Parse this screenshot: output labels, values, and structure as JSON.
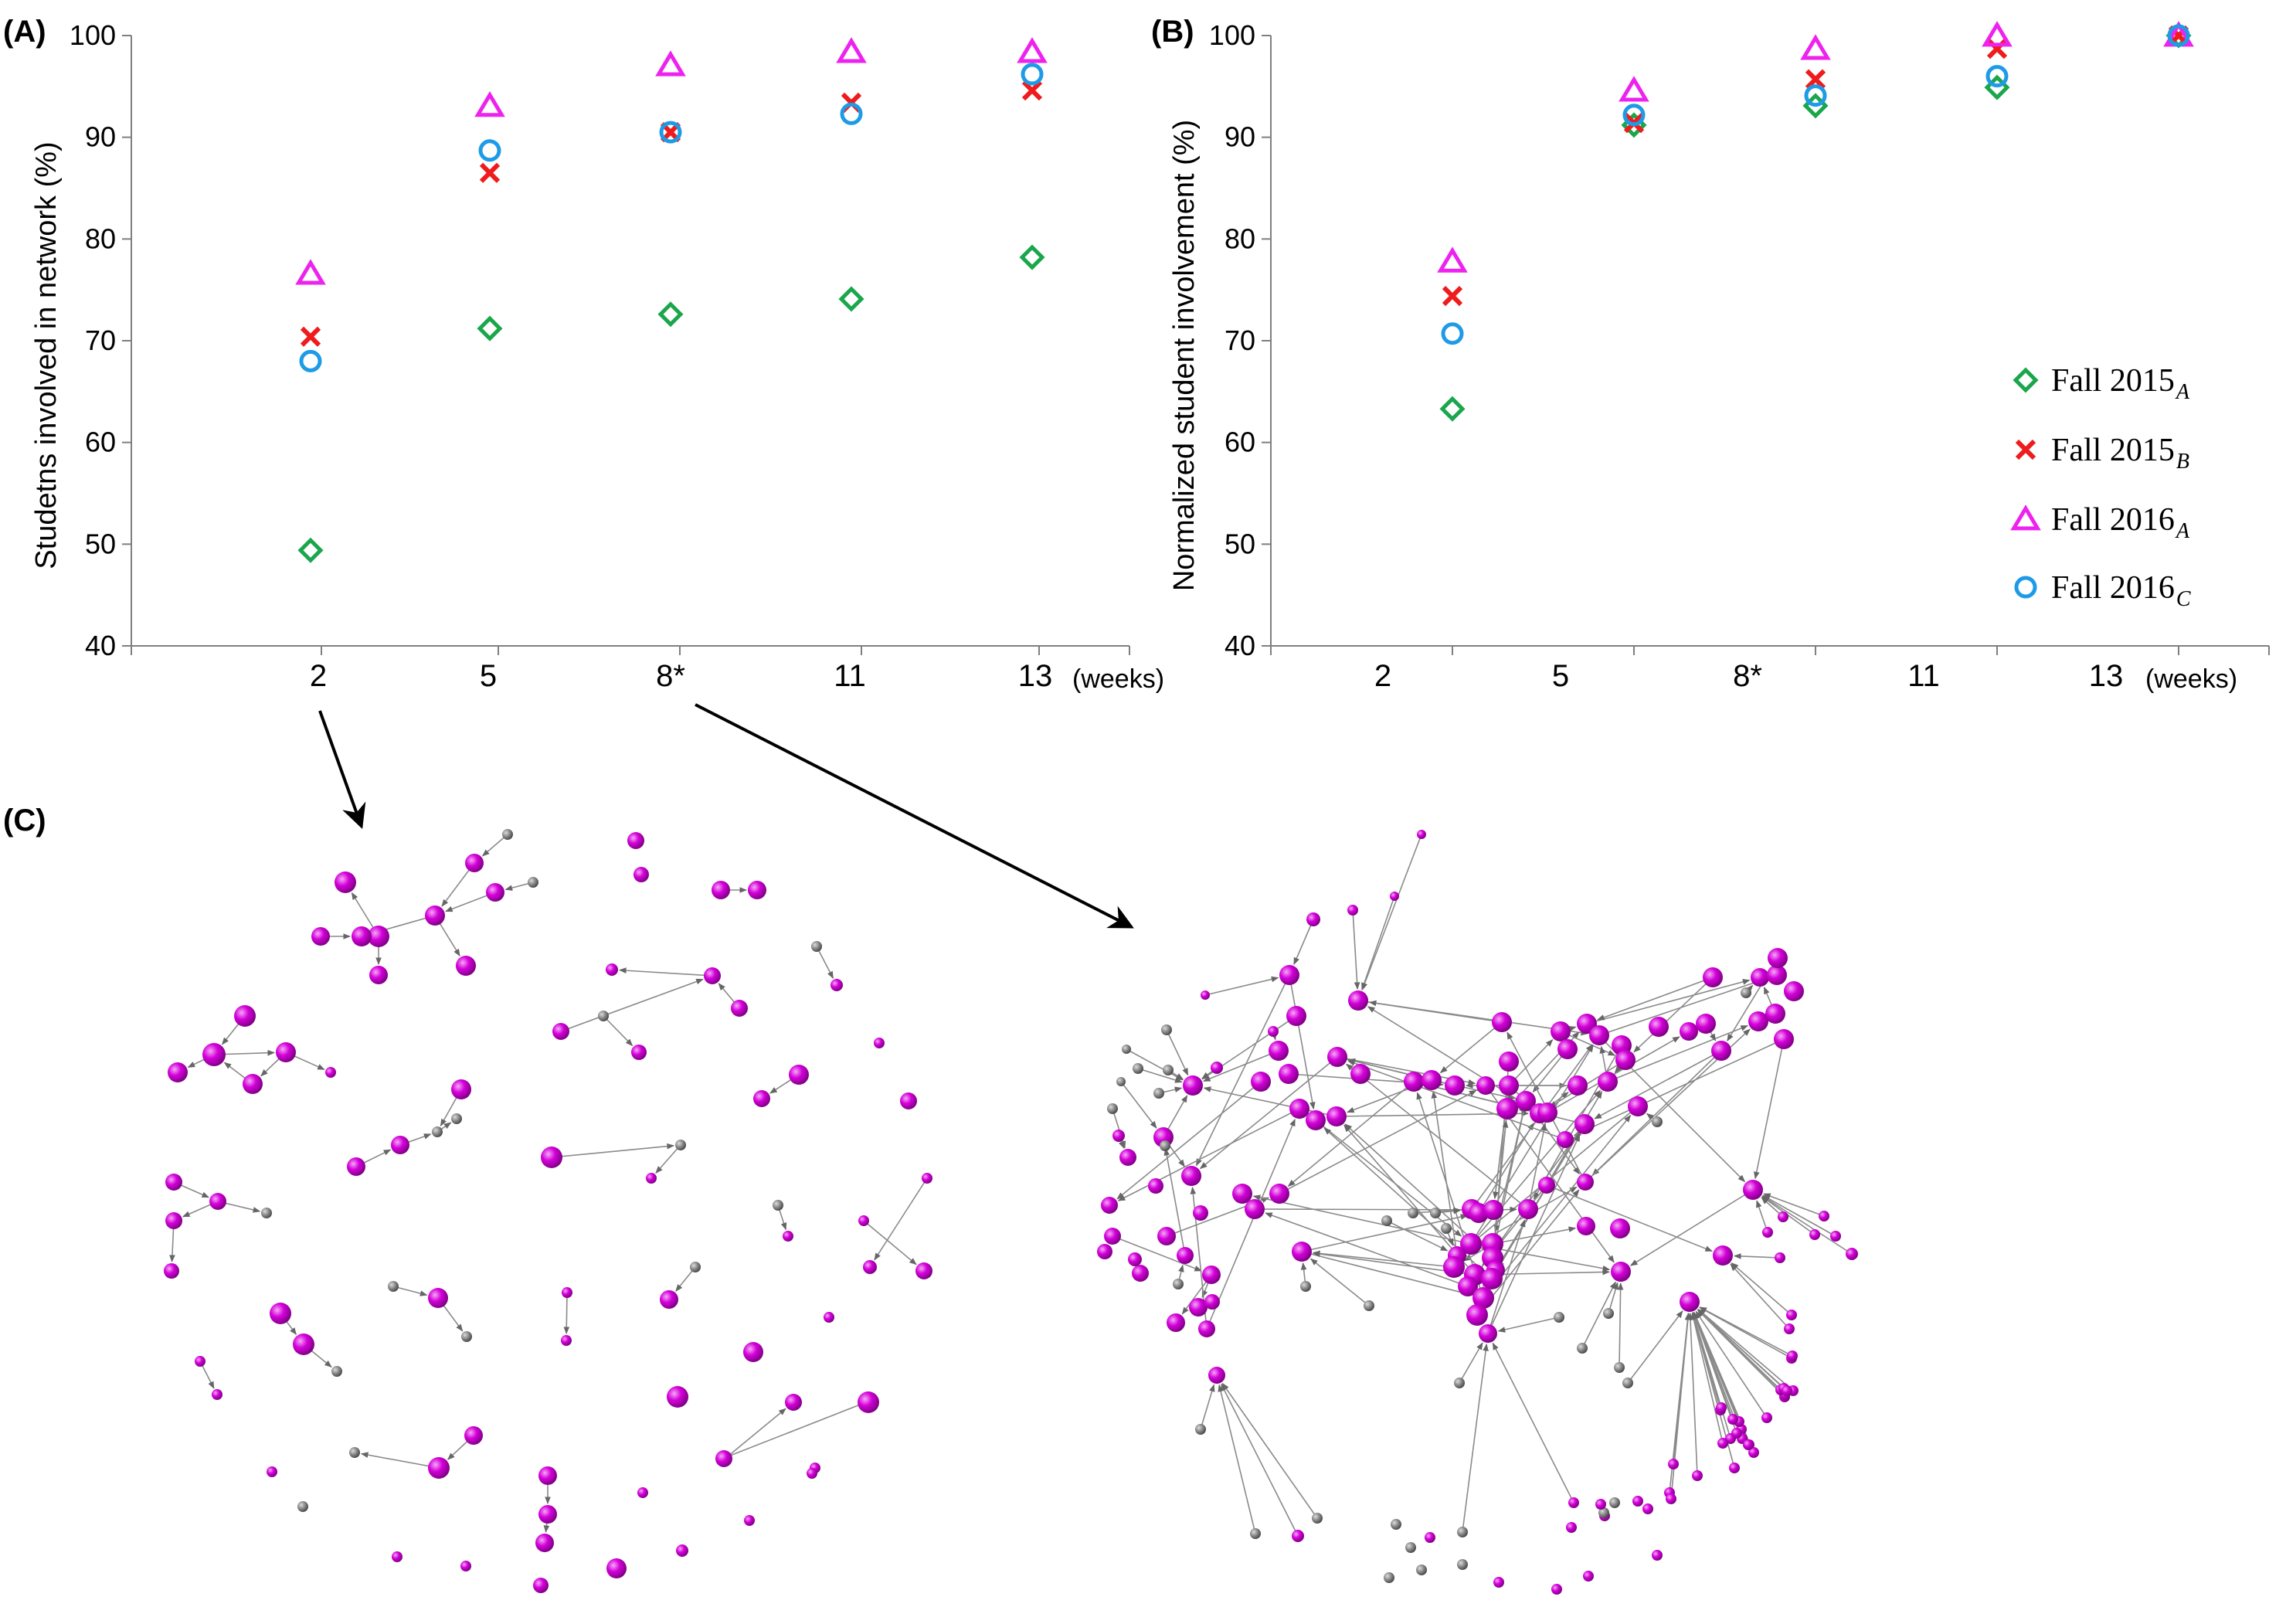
{
  "panel_labels": {
    "a": "(A)",
    "b": "(B)",
    "c": "(C)"
  },
  "chart_data": [
    {
      "type": "scatter",
      "panel": "(A)",
      "ylabel": "Studetns involved in network (%)",
      "xlabel": "",
      "x_unit_label": "(weeks)",
      "categories": [
        "2",
        "5",
        "8*",
        "11",
        "13"
      ],
      "ylim": [
        40,
        100
      ],
      "yticks": [
        40,
        50,
        60,
        70,
        80,
        90,
        100
      ],
      "grid": false,
      "series": [
        {
          "name": "Fall 2015",
          "subscript": "A",
          "marker": "diamond",
          "color": "#1aa64b",
          "values": [
            49.4,
            71.2,
            72.6,
            74.1,
            78.2
          ]
        },
        {
          "name": "Fall 2015",
          "subscript": "B",
          "marker": "x",
          "color": "#ee1c1c",
          "values": [
            70.4,
            86.5,
            90.5,
            93.4,
            94.6
          ]
        },
        {
          "name": "Fall 2016",
          "subscript": "A",
          "marker": "triangle",
          "color": "#ee22ee",
          "values": [
            76.6,
            93.1,
            97.1,
            98.4,
            98.4
          ]
        },
        {
          "name": "Fall 2016",
          "subscript": "C",
          "marker": "circle",
          "color": "#1e9be6",
          "values": [
            68.0,
            88.7,
            90.5,
            92.3,
            96.2
          ]
        }
      ]
    },
    {
      "type": "scatter",
      "panel": "(B)",
      "ylabel": "Normalized student involvement (%)",
      "xlabel": "",
      "x_unit_label": "(weeks)",
      "categories": [
        "2",
        "5",
        "8*",
        "11",
        "13"
      ],
      "ylim": [
        40,
        100
      ],
      "yticks": [
        40,
        50,
        60,
        70,
        80,
        90,
        100
      ],
      "grid": false,
      "legend": "right",
      "series": [
        {
          "name": "Fall 2015",
          "subscript": "A",
          "marker": "diamond",
          "color": "#1aa64b",
          "values": [
            63.3,
            91.2,
            93.1,
            94.9,
            100
          ]
        },
        {
          "name": "Fall 2015",
          "subscript": "B",
          "marker": "x",
          "color": "#ee1c1c",
          "values": [
            74.4,
            91.4,
            95.7,
            98.7,
            100
          ]
        },
        {
          "name": "Fall 2016",
          "subscript": "A",
          "marker": "triangle",
          "color": "#ee22ee",
          "values": [
            77.8,
            94.6,
            98.7,
            100,
            100
          ]
        },
        {
          "name": "Fall 2016",
          "subscript": "C",
          "marker": "circle",
          "color": "#1e9be6",
          "values": [
            70.7,
            92.2,
            94.1,
            96.0,
            100
          ]
        }
      ]
    }
  ],
  "network_c": {
    "node_color": "#c200c8",
    "minor_node_color": "#7a7a7a",
    "edge_color": "#8a8a8a"
  }
}
